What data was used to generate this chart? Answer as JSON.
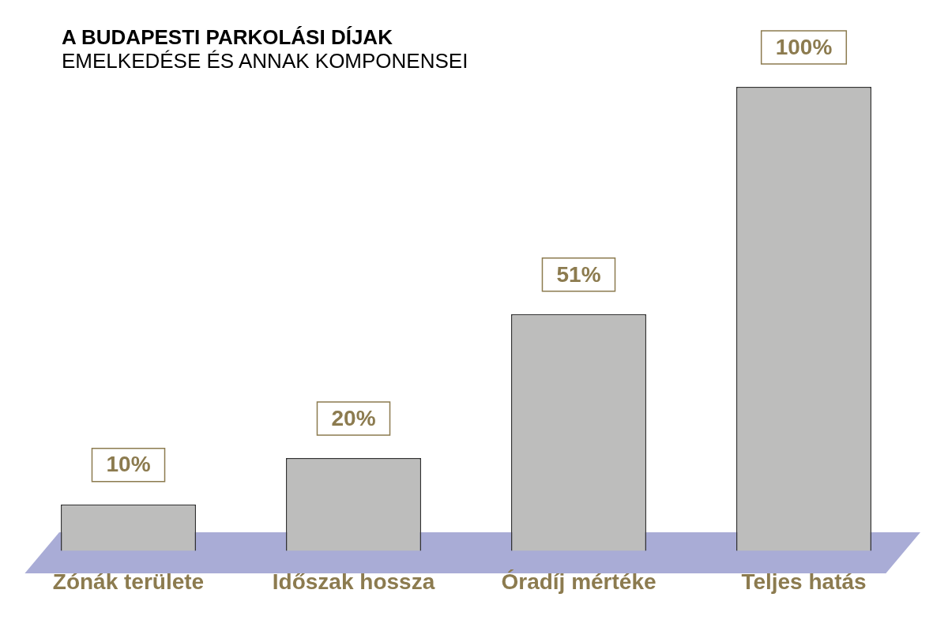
{
  "chart_data": {
    "type": "bar",
    "title": "A BUDAPESTI PARKOLÁSI DÍJAK",
    "subtitle": "EMELKEDÉSE ÉS ANNAK KOMPONENSEI",
    "categories": [
      "Zónák területe",
      "Időszak hossza",
      "Óradíj mértéke",
      "Teljes hatás"
    ],
    "values": [
      10,
      20,
      51,
      100
    ],
    "color": "#bdbdbc",
    "value_labels": [
      "10%",
      "20%",
      "51%",
      "100%"
    ],
    "grid": false,
    "legend": false
  }
}
